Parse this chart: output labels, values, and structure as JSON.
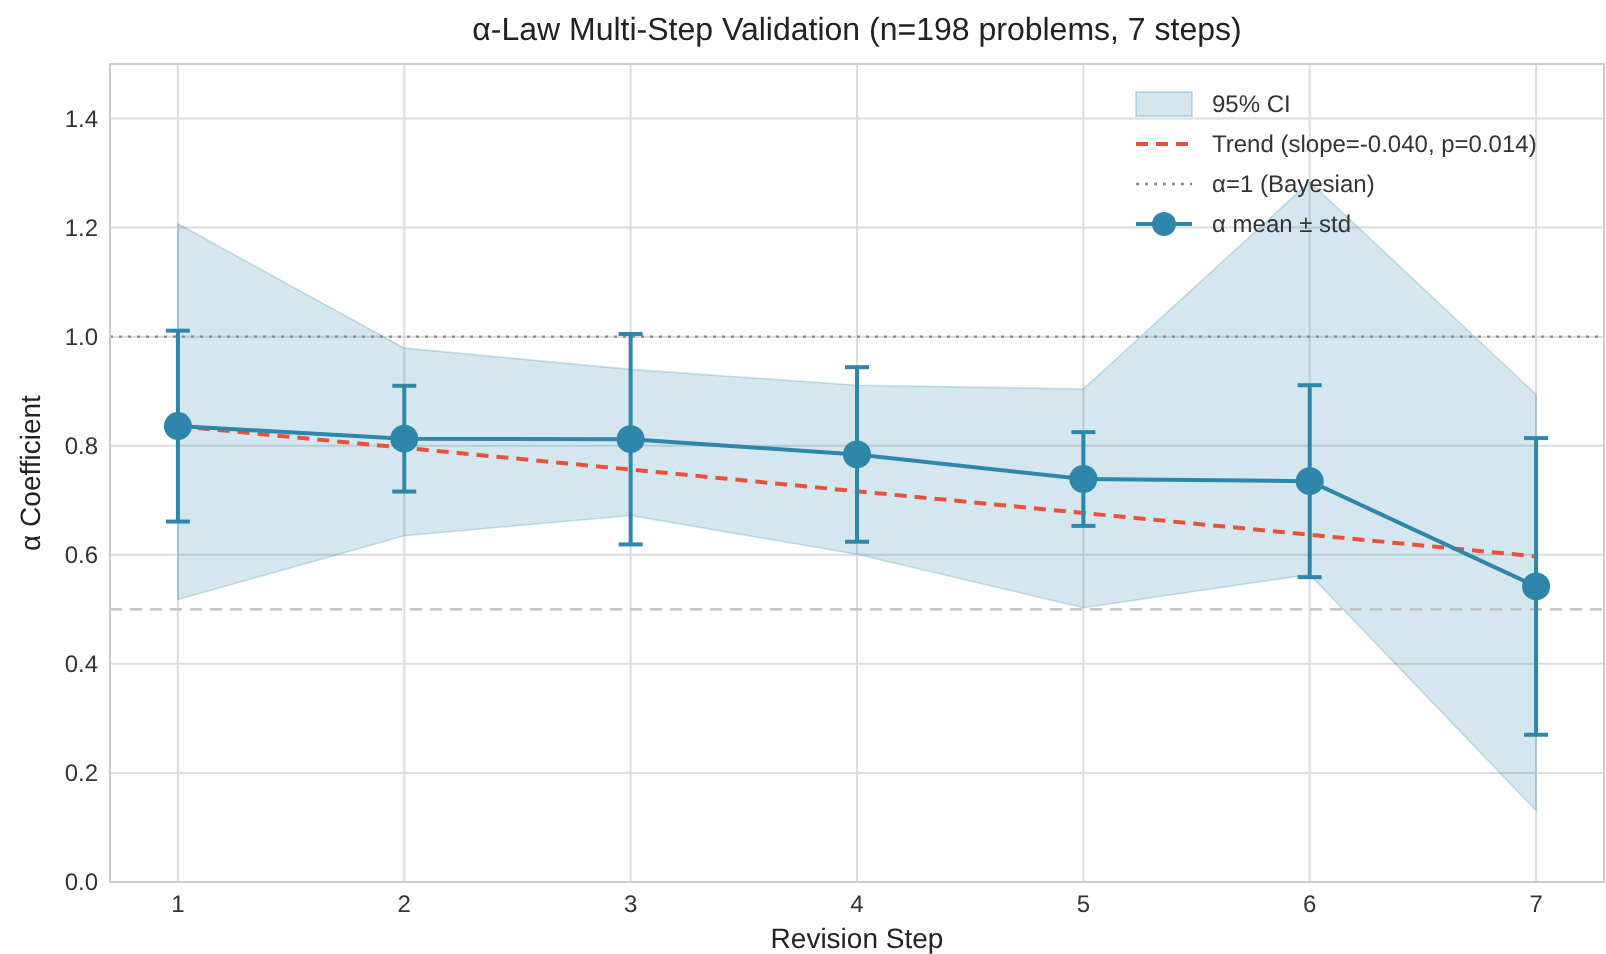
{
  "chart_data": {
    "type": "line",
    "title": "α-Law Multi-Step Validation (n=198 problems, 7 steps)",
    "xlabel": "Revision Step",
    "ylabel": "α Coefficient",
    "x": [
      1,
      2,
      3,
      4,
      5,
      6,
      7
    ],
    "xlim": [
      0.7,
      7.3
    ],
    "xticks": [
      1,
      2,
      3,
      4,
      5,
      6,
      7
    ],
    "ylim": [
      0,
      1.5
    ],
    "yticks": [
      {
        "value": 0,
        "label": "0.0"
      },
      {
        "value": 0.2,
        "label": "0.2"
      },
      {
        "value": 0.4,
        "label": "0.4"
      },
      {
        "value": 0.6,
        "label": "0.6"
      },
      {
        "value": 0.8,
        "label": "0.8"
      },
      {
        "value": 1,
        "label": "1.0"
      },
      {
        "value": 1.2,
        "label": "1.2"
      },
      {
        "value": 1.4,
        "label": "1.4"
      }
    ],
    "grid": true,
    "legend": "top right",
    "annotations": [
      "95% CI"
    ],
    "series": [
      {
        "type": "line",
        "name": "Trend (slope=-0.040, p=0.014)",
        "color": "#e8523a",
        "x": [
          1,
          7
        ],
        "values": [
          0.836,
          0.597
        ],
        "line_style": "dashed",
        "marker": "none"
      },
      {
        "name": "α mean ± std",
        "color": "#2e86ab",
        "values": [
          0.836,
          0.813,
          0.812,
          0.784,
          0.739,
          0.735,
          0.542
        ],
        "errors": [
          0.175,
          0.097,
          0.193,
          0.16,
          0.086,
          0.176,
          0.272
        ],
        "lower": [
          0.518,
          0.635,
          0.672,
          0.601,
          0.503,
          0.564,
          0.131
        ],
        "upper": [
          1.207,
          0.979,
          0.94,
          0.911,
          0.904,
          1.284,
          0.894
        ],
        "marker": "circle",
        "line_style": "solid"
      }
    ],
    "ref_lines": [
      {
        "axis": "y",
        "value": 1,
        "label": "α=1 (Bayesian)",
        "color": "#888888",
        "line_style": "dotted"
      },
      {
        "axis": "y",
        "value": 0.5,
        "color": "#bbbbbb",
        "line_style": "dashed"
      }
    ]
  }
}
